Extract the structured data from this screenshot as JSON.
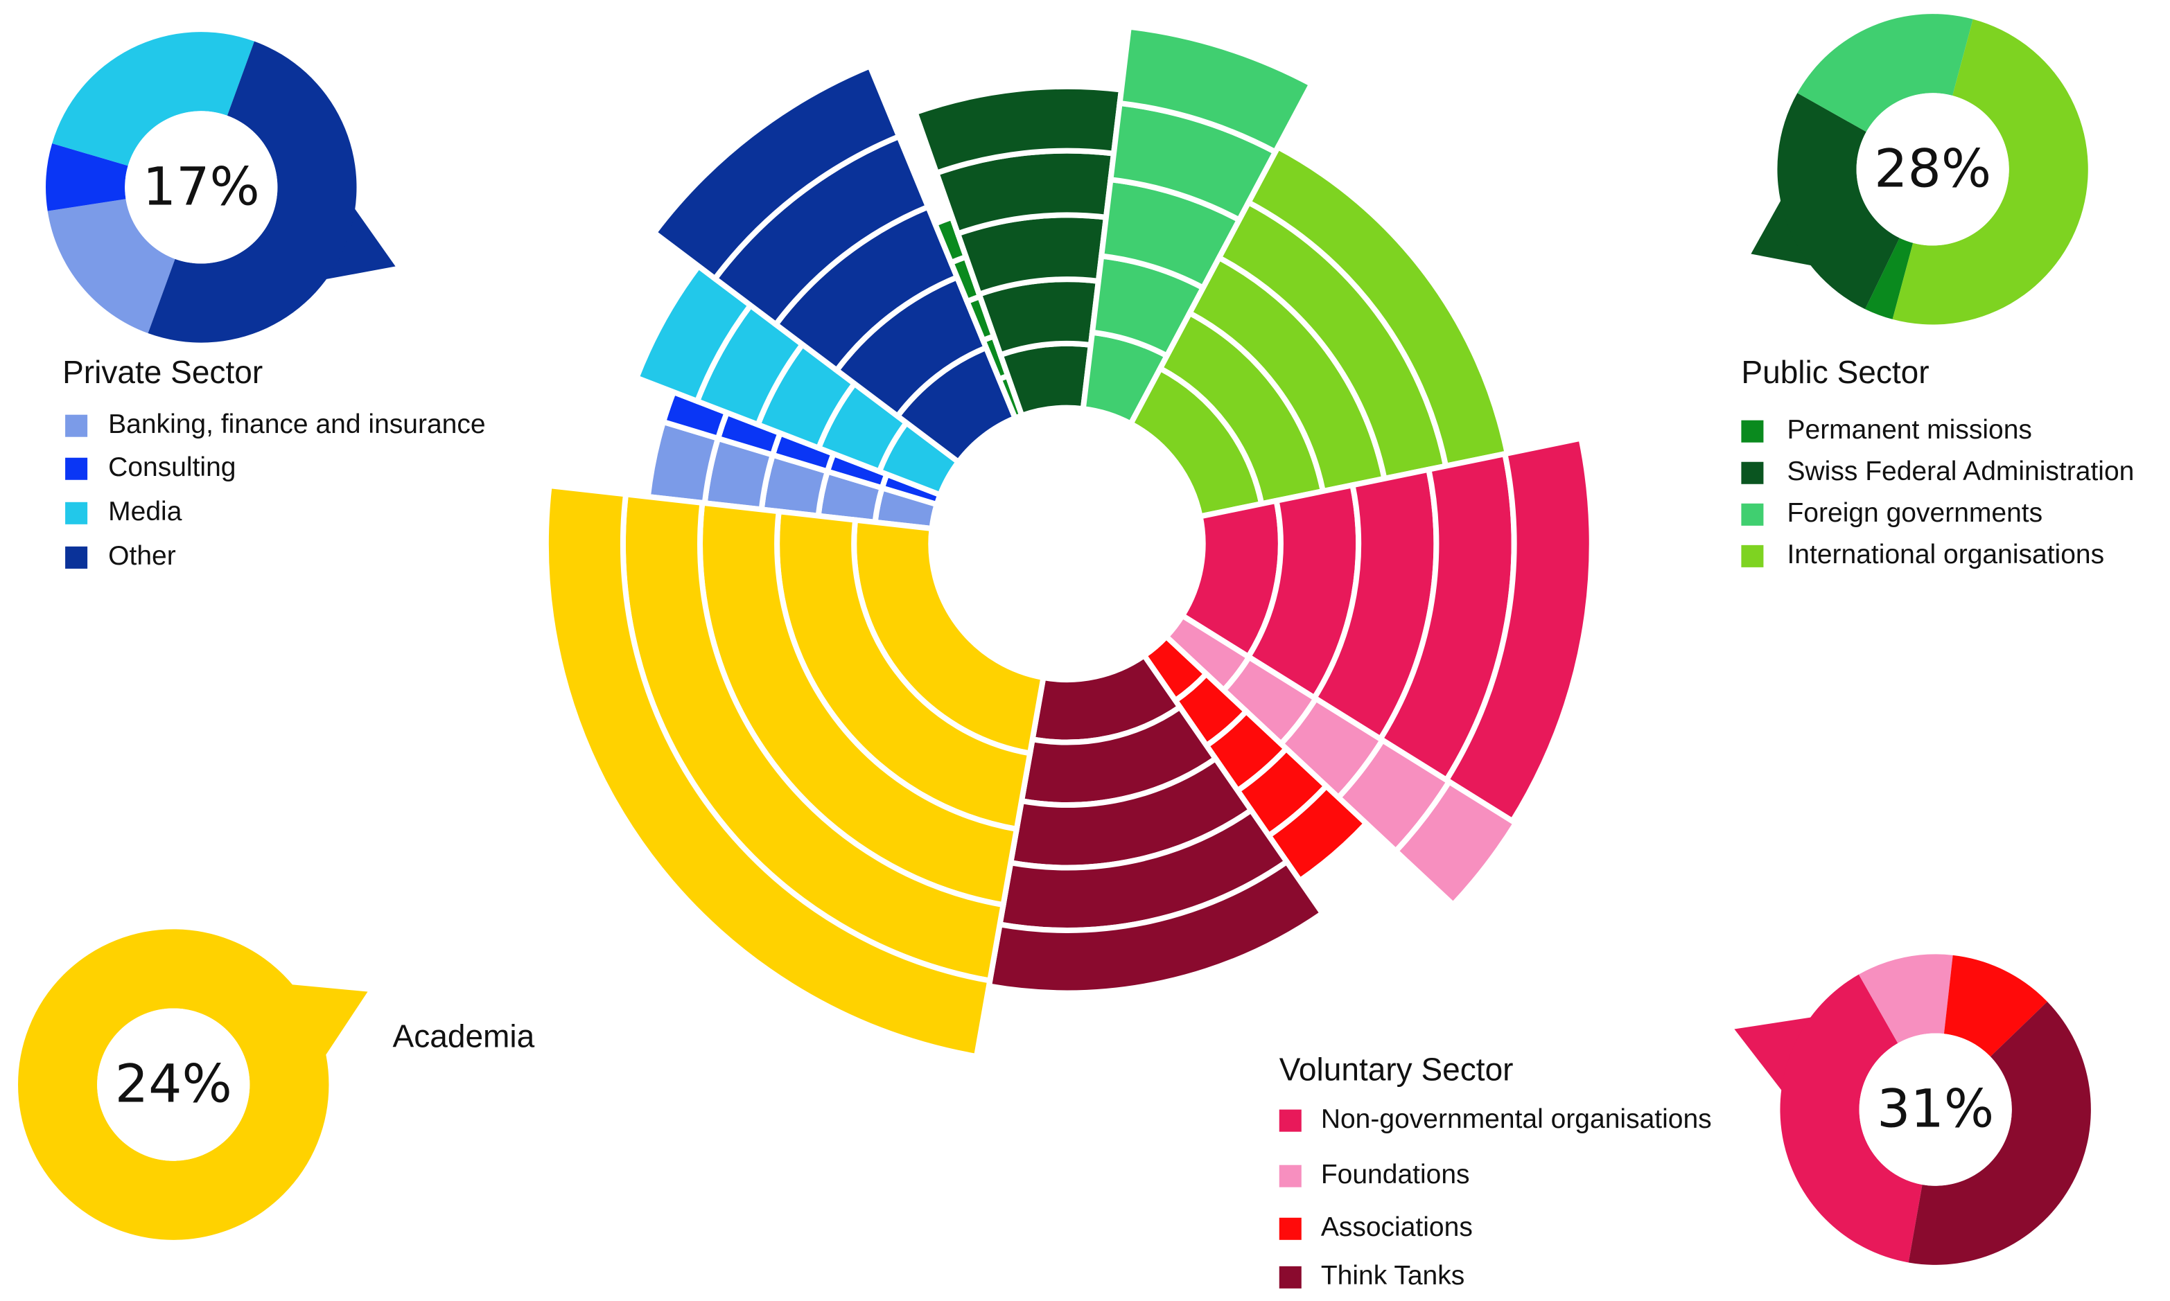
{
  "chart_data": {
    "type": "radial",
    "rlim": [
      0,
      100
    ],
    "series": [
      {
        "name": "Private Sector",
        "share": 17,
        "share_label": "17%",
        "categories": [
          "Banking, finance and insurance",
          "Consulting",
          "Media",
          "Other"
        ],
        "colors": [
          "#7b9be8",
          "#0a36f5",
          "#22c8ea",
          "#0a3299"
        ],
        "values": [
          17,
          7,
          26,
          50
        ],
        "reach": [
          72,
          72,
          82,
          96
        ]
      },
      {
        "name": "Public Sector",
        "share": 28,
        "share_label": "28%",
        "categories": [
          "Permanent missions",
          "Swiss Federal Administration",
          "Foreign governments",
          "International organisations"
        ],
        "colors": [
          "#0a8a1e",
          "#0a5520",
          "#40cf70",
          "#7ed321"
        ],
        "values": [
          3,
          26,
          21,
          50
        ],
        "reach": [
          53,
          81,
          97,
          79
        ]
      },
      {
        "name": "Voluntary Sector",
        "share": 31,
        "share_label": "31%",
        "categories": [
          "Non-governmental organisations",
          "Foundations",
          "Associations",
          "Think Tanks"
        ],
        "colors": [
          "#e8195a",
          "#f78fbf",
          "#ff0a0a",
          "#8a0a2e"
        ],
        "values": [
          39,
          10,
          11,
          40
        ],
        "reach": [
          98,
          99,
          69,
          79
        ]
      },
      {
        "name": "Academia",
        "share": 24,
        "share_label": "24%",
        "colors": [
          "#ffd200"
        ],
        "values": [
          100
        ],
        "reach": [
          97
        ]
      }
    ]
  }
}
